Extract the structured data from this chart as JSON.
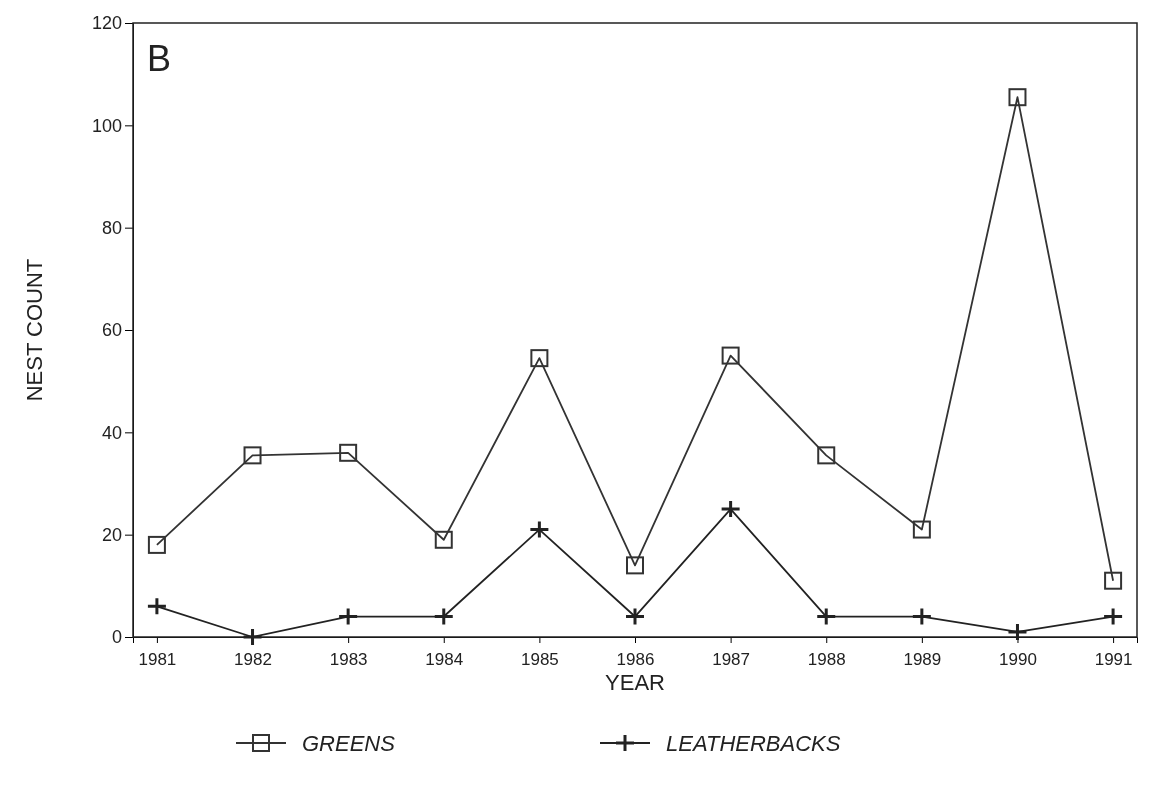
{
  "chart_data": {
    "type": "line",
    "xlabel": "YEAR",
    "ylabel": "NEST COUNT",
    "annotations": [
      "B"
    ],
    "categories": [
      "1981",
      "1982",
      "1983",
      "1984",
      "1985",
      "1986",
      "1987",
      "1988",
      "1989",
      "1990",
      "1991"
    ],
    "series": [
      {
        "name": "GREENS",
        "color": "#333333",
        "marker": "square",
        "values": [
          18,
          35.5,
          36,
          19,
          54.5,
          14,
          55,
          35.5,
          21,
          105.5,
          11
        ]
      },
      {
        "name": "LEATHERBACKS",
        "color": "#222222",
        "marker": "cross",
        "values": [
          6,
          0,
          4,
          4,
          21,
          4,
          25,
          4,
          4,
          1,
          4
        ]
      }
    ],
    "ylim": [
      0,
      120
    ],
    "yticks": [
      0,
      20,
      40,
      60,
      80,
      100,
      120
    ],
    "grid": false,
    "legend": "bottom",
    "line_style": "solid"
  }
}
